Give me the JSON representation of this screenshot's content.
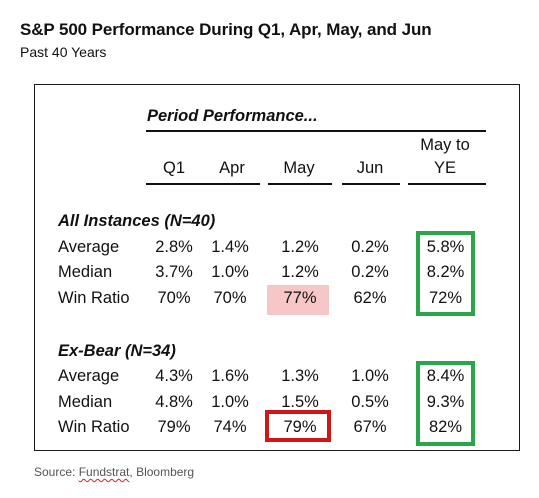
{
  "title": "S&P 500 Performance During Q1, Apr, May, and Jun",
  "subtitle": "Past 40 Years",
  "period_header": "Period Performance...",
  "columns": [
    "Q1",
    "Apr",
    "May",
    "Jun"
  ],
  "last_column": {
    "line1": "May to",
    "line2": "YE"
  },
  "sections": [
    {
      "title": "All Instances (N=40)",
      "rows": [
        {
          "label": "Average",
          "values": [
            "2.8%",
            "1.4%",
            "1.2%",
            "0.2%",
            "5.8%"
          ]
        },
        {
          "label": "Median",
          "values": [
            "3.7%",
            "1.0%",
            "1.2%",
            "0.2%",
            "8.2%"
          ]
        },
        {
          "label": "Win Ratio",
          "values": [
            "70%",
            "70%",
            "77%",
            "62%",
            "72%"
          ]
        }
      ]
    },
    {
      "title": "Ex-Bear (N=34)",
      "rows": [
        {
          "label": "Average",
          "values": [
            "4.3%",
            "1.6%",
            "1.3%",
            "1.0%",
            "8.4%"
          ]
        },
        {
          "label": "Median",
          "values": [
            "4.8%",
            "1.0%",
            "1.5%",
            "0.5%",
            "9.3%"
          ]
        },
        {
          "label": "Win Ratio",
          "values": [
            "79%",
            "74%",
            "79%",
            "67%",
            "82%"
          ]
        }
      ]
    }
  ],
  "source": {
    "prefix": "Source: ",
    "name": "Fundstrat",
    "suffix": ", Bloomberg"
  },
  "colors": {
    "highlight_pink": "#f7c6c6",
    "box_red": "#d11616",
    "box_green": "#2aa54a"
  }
}
